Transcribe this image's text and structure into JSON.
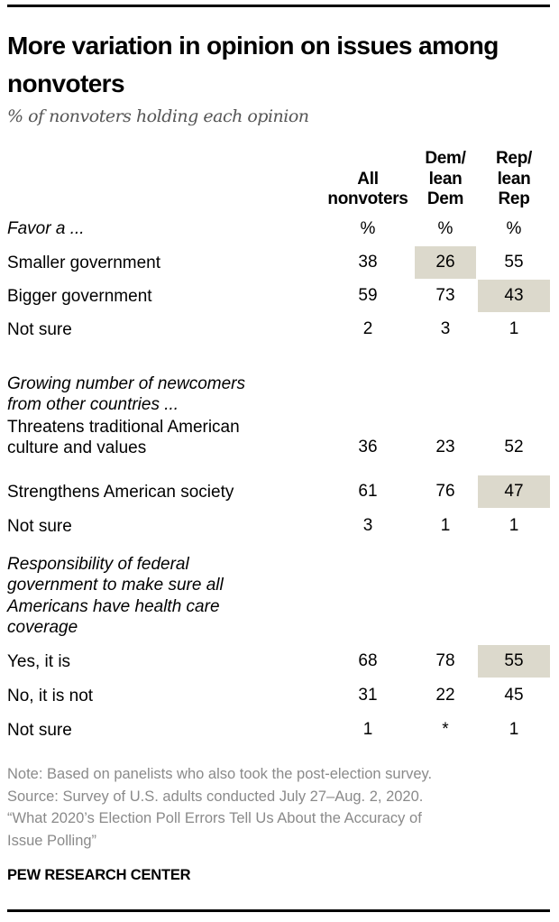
{
  "title": "More variation in opinion on issues among nonvoters",
  "subtitle": "% of nonvoters holding each opinion",
  "chart_data": {
    "type": "table",
    "columns": [
      {
        "lines": [
          "All",
          "nonvoters"
        ]
      },
      {
        "lines": [
          "Dem/",
          "lean",
          "Dem"
        ]
      },
      {
        "lines": [
          "Rep/",
          "lean",
          "Rep"
        ]
      }
    ],
    "unit_row": [
      "%",
      "%",
      "%"
    ],
    "sections": [
      {
        "heading": [
          "Favor a ..."
        ],
        "rows": [
          {
            "label": [
              "Smaller government"
            ],
            "values": [
              "38",
              "26",
              "55"
            ],
            "highlight": [
              false,
              true,
              false
            ]
          },
          {
            "label": [
              "Bigger government"
            ],
            "values": [
              "59",
              "73",
              "43"
            ],
            "highlight": [
              false,
              false,
              true
            ]
          },
          {
            "label": [
              "Not sure"
            ],
            "values": [
              "2",
              "3",
              "1"
            ],
            "highlight": [
              false,
              false,
              false
            ]
          }
        ]
      },
      {
        "heading": [
          "Growing number of newcomers",
          "from other countries ..."
        ],
        "rows": [
          {
            "label": [
              "Threatens traditional American",
              "culture and values"
            ],
            "values": [
              "36",
              "23",
              "52"
            ],
            "highlight": [
              false,
              false,
              false
            ]
          },
          {
            "label": [
              "Strengthens American society"
            ],
            "values": [
              "61",
              "76",
              "47"
            ],
            "highlight": [
              false,
              false,
              true
            ]
          },
          {
            "label": [
              "Not sure"
            ],
            "values": [
              "3",
              "1",
              "1"
            ],
            "highlight": [
              false,
              false,
              false
            ]
          }
        ]
      },
      {
        "heading": [
          "Responsibility of federal",
          "government to make sure all",
          "Americans have health care",
          "coverage"
        ],
        "rows": [
          {
            "label": [
              "Yes, it is"
            ],
            "values": [
              "68",
              "78",
              "55"
            ],
            "highlight": [
              false,
              false,
              true
            ]
          },
          {
            "label": [
              "No, it is not"
            ],
            "values": [
              "31",
              "22",
              "45"
            ],
            "highlight": [
              false,
              false,
              false
            ]
          },
          {
            "label": [
              "Not sure"
            ],
            "values": [
              "1",
              "*",
              "1"
            ],
            "highlight": [
              false,
              false,
              false
            ]
          }
        ]
      }
    ],
    "highlight_color": "#dcd9cc"
  },
  "notes": [
    "Note: Based on panelists who also took the post-election survey.",
    "Source: Survey of U.S. adults conducted July 27–Aug. 2, 2020.",
    "“What 2020’s Election Poll Errors Tell Us About the Accuracy of",
    "Issue Polling”"
  ],
  "brand": "PEW RESEARCH CENTER"
}
